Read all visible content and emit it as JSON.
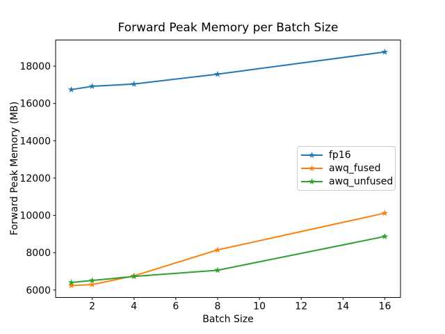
{
  "chart_data": {
    "type": "line",
    "title": "Forward Peak Memory per Batch Size",
    "xlabel": "Batch Size",
    "ylabel": "Forward Peak Memory (MB)",
    "x": [
      1,
      2,
      4,
      8,
      16
    ],
    "series": [
      {
        "name": "fp16",
        "color": "#1f77b4",
        "values": [
          16740,
          16920,
          17040,
          17570,
          18760
        ]
      },
      {
        "name": "awq_fused",
        "color": "#ff7f0e",
        "values": [
          6240,
          6290,
          6760,
          8150,
          10120
        ]
      },
      {
        "name": "awq_unfused",
        "color": "#2ca02c",
        "values": [
          6400,
          6510,
          6730,
          7060,
          8870
        ]
      }
    ],
    "marker": "star",
    "xlim": [
      0.25,
      16.75
    ],
    "ylim": [
      5600,
      19400
    ],
    "xticks": [
      2,
      4,
      6,
      8,
      10,
      12,
      14,
      16
    ],
    "yticks": [
      6000,
      8000,
      10000,
      12000,
      14000,
      16000,
      18000
    ],
    "grid": false,
    "legend_position": "center-right",
    "axis_color": "#000000",
    "background_color": "#ffffff"
  }
}
